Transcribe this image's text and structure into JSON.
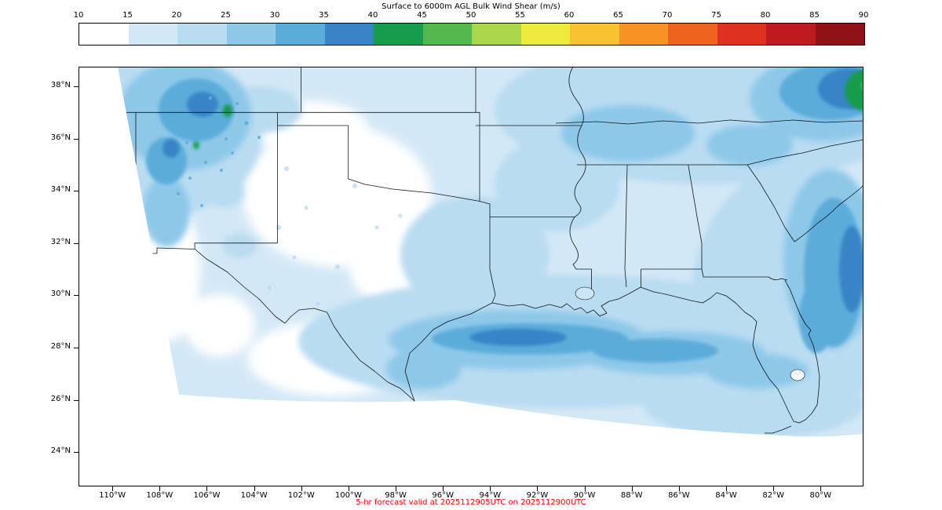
{
  "title": "Surface to 6000m AGL Bulk Wind Shear (m/s)",
  "caption": "5-hr forecast valid at 2025112905UTC on 2025112900UTC",
  "caption_color": "#ff0000",
  "colorbar": {
    "ticks": [
      "10",
      "15",
      "20",
      "25",
      "30",
      "35",
      "40",
      "45",
      "50",
      "55",
      "60",
      "65",
      "70",
      "75",
      "80",
      "85",
      "90"
    ],
    "colors": [
      "#ffffff",
      "#d3e8f6",
      "#b9dcf1",
      "#8dc8e9",
      "#5cacda",
      "#3884c6",
      "#169c4b",
      "#55b84e",
      "#aad64b",
      "#eeea3d",
      "#f8c231",
      "#f69322",
      "#ee641f",
      "#df3122",
      "#bf1a20",
      "#8d1115"
    ]
  },
  "map": {
    "lat_ticks": [
      "38°N",
      "36°N",
      "34°N",
      "32°N",
      "30°N",
      "28°N",
      "26°N",
      "24°N"
    ],
    "lon_ticks": [
      "110°W",
      "108°W",
      "106°W",
      "104°W",
      "102°W",
      "100°W",
      "98°W",
      "96°W",
      "94°W",
      "92°W",
      "90°W",
      "88°W",
      "86°W",
      "84°W",
      "82°W",
      "80°W"
    ]
  },
  "chart_data": {
    "type": "heatmap",
    "title": "Surface to 6000m AGL Bulk Wind Shear (m/s)",
    "variable": "bulk wind shear between surface and 6000 m AGL, filled contours over southern United States",
    "units": "m/s",
    "levels": [
      10,
      15,
      20,
      25,
      30,
      35,
      40,
      45,
      50,
      55,
      60,
      65,
      70,
      75,
      80,
      85,
      90
    ],
    "colorbar_orientation": "horizontal, ticks above bar",
    "x_ticks": [
      "110°W",
      "108°W",
      "106°W",
      "104°W",
      "102°W",
      "100°W",
      "98°W",
      "96°W",
      "94°W",
      "92°W",
      "90°W",
      "88°W",
      "86°W",
      "84°W",
      "82°W",
      "80°W"
    ],
    "y_ticks": [
      "38°N",
      "36°N",
      "34°N",
      "32°N",
      "30°N",
      "28°N",
      "26°N",
      "24°N"
    ],
    "domain_note": "Lambert-conformal model domain; data region clipped by a diagonal boundary on the west side and an arced boundary across the southern Gulf",
    "regions": [
      {
        "area": "Gulf coastal waters from central Texas coast across Louisiana shelf",
        "value_range_ms": [
          30,
          40
        ]
      },
      {
        "area": "coastal band inland, south Texas to Florida Panhandle",
        "value_range_ms": [
          25,
          30
        ]
      },
      {
        "area": "central and southern Texas interior",
        "value_range_ms": [
          10,
          15
        ]
      },
      {
        "area": "west Texas / eastern New Mexico plains",
        "value_range_ms": [
          10,
          20
        ]
      },
      {
        "area": "Oklahoma, Arkansas, lower Mississippi Valley",
        "value_range_ms": [
          15,
          25
        ]
      },
      {
        "area": "Tennessee Valley and southern Appalachians",
        "value_range_ms": [
          20,
          30
        ]
      },
      {
        "area": "Atlantic waters off Georgia and northeast Florida coast",
        "value_range_ms": [
          25,
          40
        ]
      },
      {
        "area": "Colorado Rockies in northwest corner of domain",
        "value_range_ms": [
          25,
          45
        ]
      },
      {
        "area": "far northeast corner of domain (Virginia/Carolinas)",
        "value_range_ms": [
          25,
          50
        ]
      },
      {
        "area": "Florida peninsula",
        "value_range_ms": [
          15,
          25
        ]
      }
    ],
    "caption": "5-hr forecast valid at 2025112905UTC on 2025112900UTC"
  }
}
